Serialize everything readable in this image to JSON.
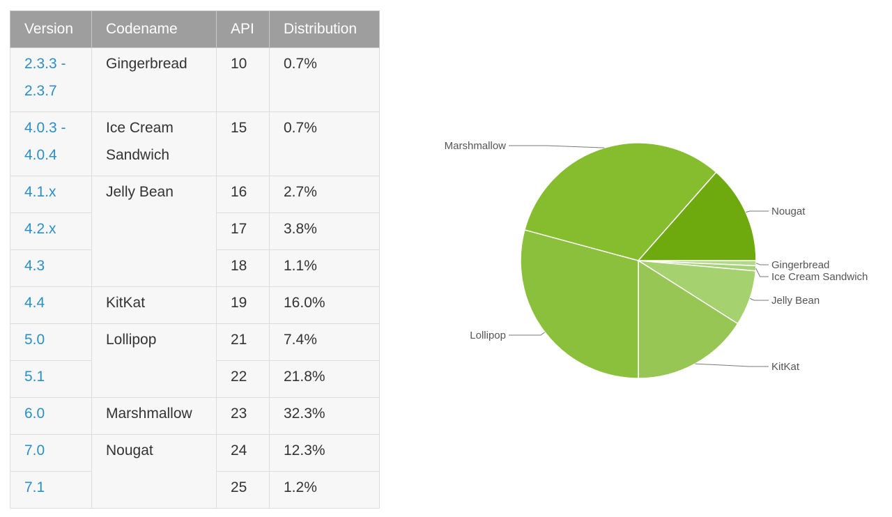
{
  "table": {
    "headers": [
      "Version",
      "Codename",
      "API",
      "Distribution"
    ],
    "rows": [
      {
        "version": [
          "2.3.3 -",
          "2.3.7"
        ],
        "codename": [
          "Gingerbread"
        ],
        "api": "10",
        "distribution": "0.7%"
      },
      {
        "version": [
          "4.0.3 -",
          "4.0.4"
        ],
        "codename": [
          "Ice Cream",
          "Sandwich"
        ],
        "api": "15",
        "distribution": "0.7%"
      },
      {
        "version": [
          "4.1.x"
        ],
        "codename": [
          "Jelly Bean"
        ],
        "codename_span": 3,
        "api": "16",
        "distribution": "2.7%"
      },
      {
        "version": [
          "4.2.x"
        ],
        "api": "17",
        "distribution": "3.8%"
      },
      {
        "version": [
          "4.3"
        ],
        "api": "18",
        "distribution": "1.1%"
      },
      {
        "version": [
          "4.4"
        ],
        "codename": [
          "KitKat"
        ],
        "api": "19",
        "distribution": "16.0%"
      },
      {
        "version": [
          "5.0"
        ],
        "codename": [
          "Lollipop"
        ],
        "codename_span": 2,
        "api": "21",
        "distribution": "7.4%"
      },
      {
        "version": [
          "5.1"
        ],
        "api": "22",
        "distribution": "21.8%"
      },
      {
        "version": [
          "6.0"
        ],
        "codename": [
          "Marshmallow"
        ],
        "api": "23",
        "distribution": "32.3%"
      },
      {
        "version": [
          "7.0"
        ],
        "codename": [
          "Nougat"
        ],
        "codename_span": 2,
        "api": "24",
        "distribution": "12.3%"
      },
      {
        "version": [
          "7.1"
        ],
        "api": "25",
        "distribution": "1.2%"
      }
    ]
  },
  "chart_data": {
    "type": "pie",
    "title": "",
    "slices": [
      {
        "label": "Gingerbread",
        "value": 0.7,
        "color": "#b2d889"
      },
      {
        "label": "Ice Cream Sandwich",
        "value": 0.7,
        "color": "#a6d277"
      },
      {
        "label": "Jelly Bean",
        "value": 7.6,
        "color": "#a5d16e"
      },
      {
        "label": "KitKat",
        "value": 16.0,
        "color": "#97c655"
      },
      {
        "label": "Lollipop",
        "value": 29.2,
        "color": "#8bc03c"
      },
      {
        "label": "Marshmallow",
        "value": 32.3,
        "color": "#86bd2f"
      },
      {
        "label": "Nougat",
        "value": 13.5,
        "color": "#6eaa0e"
      }
    ],
    "start_angle_deg": 0,
    "direction": "clockwise",
    "colors": {
      "slice_border": "#ffffff",
      "leader_line": "#777777",
      "label_text": "#555555"
    }
  }
}
